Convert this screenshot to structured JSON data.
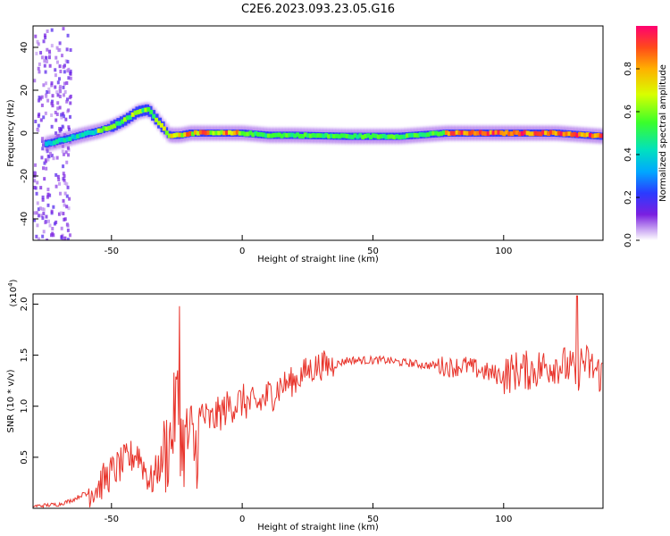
{
  "figure_title": "C2E6.2023.093.23.05.G16",
  "chart_data": [
    {
      "type": "heatmap",
      "title": "C2E6.2023.093.23.05.G16",
      "xlabel": "Height of straight line (km)",
      "ylabel": "Frequency (Hz)",
      "xlim": [
        -80,
        138
      ],
      "ylim": [
        -50,
        50
      ],
      "xticks": [
        -50,
        0,
        50,
        100
      ],
      "yticks": [
        -40,
        -20,
        0,
        20,
        40
      ],
      "colorbar": {
        "label": "Normalized spectral amplitude",
        "range": [
          0,
          1
        ],
        "ticks": [
          0.0,
          0.2,
          0.4,
          0.6,
          0.8
        ]
      },
      "ridge": {
        "description_points_x": [
          -75,
          -68,
          -62,
          -55,
          -50,
          -45,
          -40,
          -36,
          -32,
          -28,
          -24,
          -20,
          -10,
          0,
          10,
          20,
          40,
          60,
          78,
          100,
          120,
          138
        ],
        "description_points_y": [
          -5,
          -3,
          -1,
          1,
          3,
          6,
          10,
          11,
          5,
          -1,
          -1,
          0,
          0,
          0,
          -1,
          -1,
          -1.5,
          -1.5,
          0,
          0,
          0,
          -1.5
        ]
      },
      "grid": false
    },
    {
      "type": "line",
      "xlabel": "Height of straight line (km)",
      "ylabel": "SNR (10 * v/v)",
      "yscale_label": "(x10^4)",
      "xlim": [
        -80,
        138
      ],
      "ylim": [
        0,
        2.1
      ],
      "xticks": [
        -50,
        0,
        50,
        100
      ],
      "yticks": [
        0.5,
        1.0,
        1.5,
        2.0
      ],
      "series": [
        {
          "color": "#e8332a",
          "x": [
            -80,
            -70,
            -65,
            -60,
            -55,
            -50,
            -45,
            -40,
            -35,
            -30,
            -27,
            -25,
            -23,
            -20,
            -18,
            -15,
            -12,
            -10,
            -5,
            0,
            5,
            10,
            15,
            20,
            25,
            30,
            35,
            40,
            45,
            50,
            55,
            60,
            65,
            70,
            75,
            80,
            85,
            90,
            95,
            100,
            105,
            110,
            115,
            120,
            125,
            128,
            130,
            135,
            138
          ],
          "y": [
            0.02,
            0.04,
            0.08,
            0.15,
            0.22,
            0.35,
            0.45,
            0.55,
            0.25,
            0.5,
            0.7,
            1.1,
            0.6,
            0.7,
            0.55,
            0.9,
            0.85,
            0.9,
            1.0,
            1.05,
            1.0,
            1.1,
            1.2,
            1.25,
            1.35,
            1.4,
            1.4,
            1.45,
            1.45,
            1.45,
            1.45,
            1.43,
            1.42,
            1.4,
            1.4,
            1.38,
            1.4,
            1.36,
            1.32,
            1.3,
            1.35,
            1.35,
            1.38,
            1.42,
            1.38,
            1.3,
            1.45,
            1.35,
            1.3
          ]
        }
      ],
      "grid": false
    }
  ]
}
